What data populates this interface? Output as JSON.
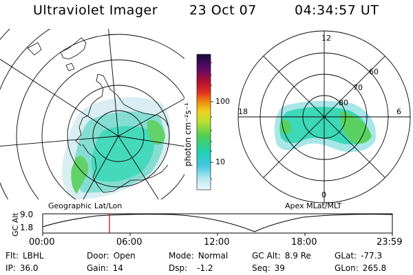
{
  "header": {
    "title": "Ultraviolet Imager",
    "date": "23 Oct 07",
    "time": "04:34:57 UT"
  },
  "geographic_panel": {
    "label": "Geographic Lat/Lon"
  },
  "apex_panel": {
    "label": "Apex MLat/MLT",
    "mlt_labels": [
      "12",
      "18",
      "6",
      "0"
    ],
    "mlat_labels": [
      "60",
      "70",
      "80"
    ]
  },
  "colorbar": {
    "unit_label": "photon cm⁻²s⁻¹",
    "tick_labels": [
      "100",
      "10"
    ],
    "colors": [
      "#1a0a3a",
      "#5a0a6a",
      "#b01030",
      "#e03020",
      "#f08a10",
      "#f0d020",
      "#b8e030",
      "#50d050",
      "#20d0b0",
      "#40c8e0",
      "#b8e8f0",
      "#f0f8ff"
    ]
  },
  "timeline": {
    "y_axis_label": "GC Alt",
    "y_ticks": [
      "9.0",
      "1.8"
    ],
    "x_ticks": [
      "00:00",
      "06:00",
      "12:00",
      "18:00",
      "23:59"
    ],
    "current_time_fraction": 0.191,
    "marker_color": "#cc0000"
  },
  "info": {
    "row1": [
      {
        "label": "Flt:",
        "value": "LBHL"
      },
      {
        "label": "Door:",
        "value": "Open"
      },
      {
        "label": "Mode:",
        "value": "Normal"
      },
      {
        "label": "GC Alt:",
        "value": "8.9 Re"
      },
      {
        "label": "GLat:",
        "value": "-77.3"
      }
    ],
    "row2": [
      {
        "label": "IP:",
        "value": "36.0"
      },
      {
        "label": "Gain:",
        "value": "14"
      },
      {
        "label": "Dsp:",
        "value": "-1.2"
      },
      {
        "label": "Seq:",
        "value": "39"
      },
      {
        "label": "GLon:",
        "value": "265.8"
      }
    ]
  }
}
